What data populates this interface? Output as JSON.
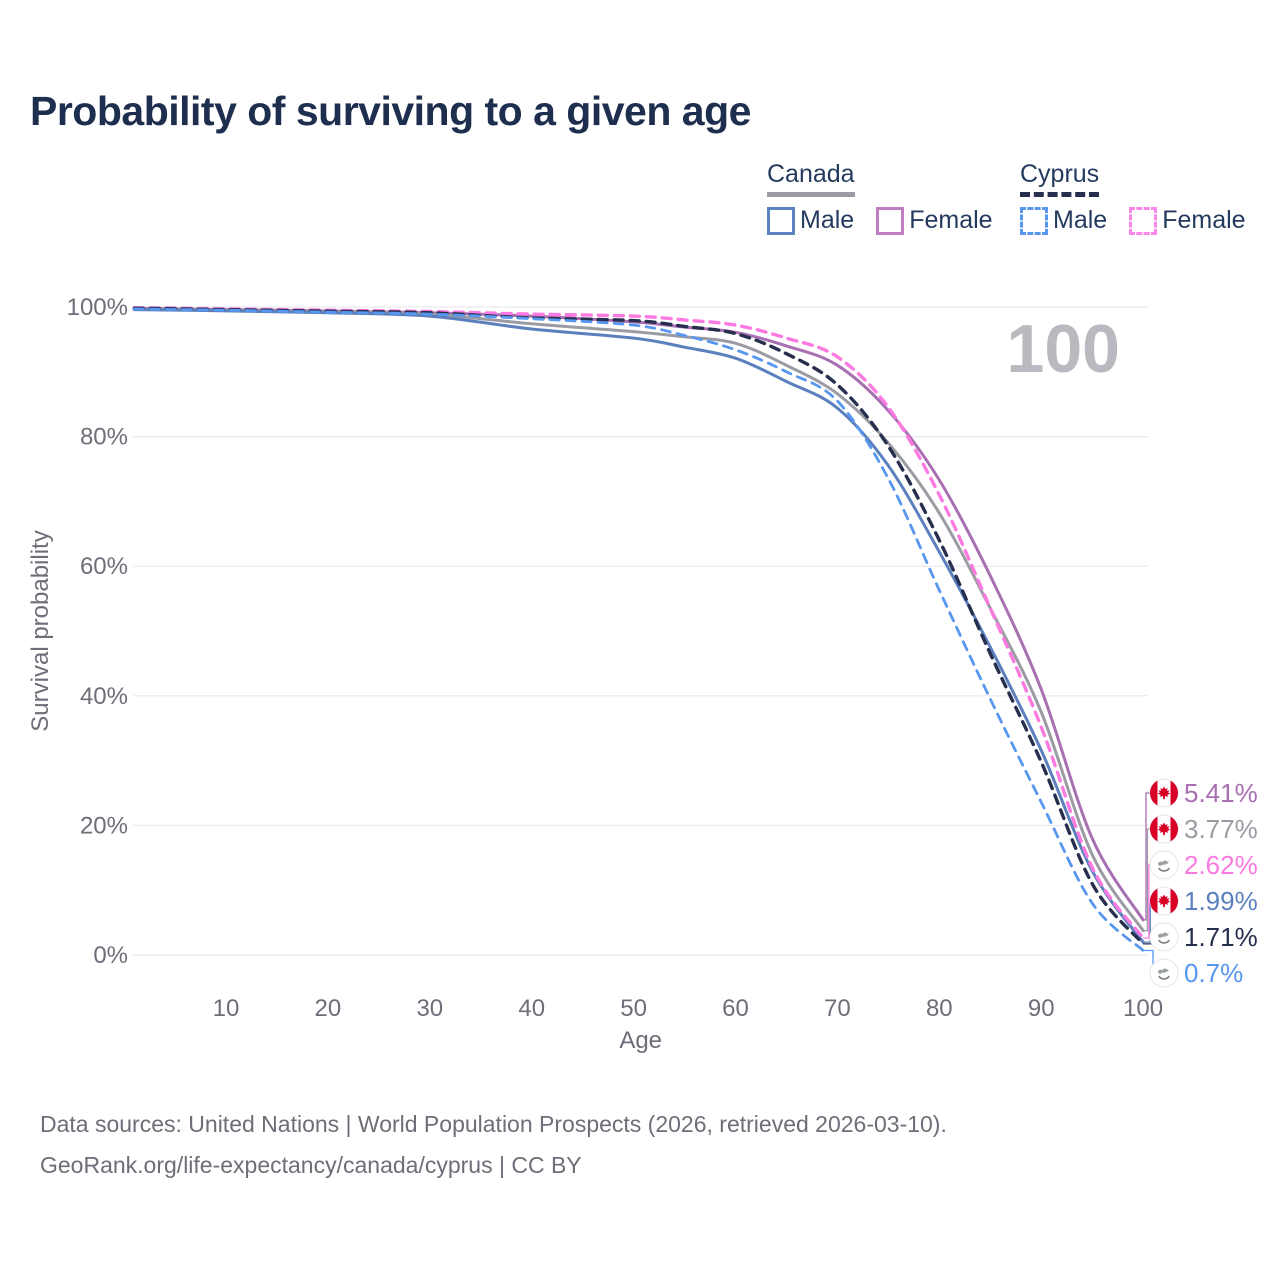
{
  "title": "Probability of surviving to a given age",
  "watermark_age": "100",
  "legend": {
    "groups": [
      {
        "name": "Canada",
        "underline": "solid",
        "underline_color": "#9b9ba3",
        "items": [
          {
            "label": "Male",
            "color": "#5b83c0",
            "dashed": false
          },
          {
            "label": "Female",
            "color": "#c07ec2",
            "dashed": false
          }
        ]
      },
      {
        "name": "Cyprus",
        "underline": "dashed",
        "underline_color": "#262f4d",
        "items": [
          {
            "label": "Male",
            "color": "#5797ef",
            "dashed": true
          },
          {
            "label": "Female",
            "color": "#fb85e8",
            "dashed": true
          }
        ]
      }
    ]
  },
  "chart_data": {
    "type": "line",
    "title": "Probability of surviving to a given age",
    "xlabel": "Age",
    "ylabel": "Survival probability",
    "xlim": [
      1,
      100
    ],
    "ylim": [
      0,
      100
    ],
    "grid": "horizontal-only",
    "legend_position": "top-right",
    "x_ticks": [
      10,
      20,
      30,
      40,
      50,
      60,
      70,
      80,
      90,
      100
    ],
    "y_ticks": [
      {
        "value": 0,
        "label": "0%"
      },
      {
        "value": 20,
        "label": "20%"
      },
      {
        "value": 40,
        "label": "40%"
      },
      {
        "value": 60,
        "label": "60%"
      },
      {
        "value": 80,
        "label": "80%"
      },
      {
        "value": 100,
        "label": "100%"
      }
    ],
    "ages": [
      1,
      10,
      20,
      30,
      40,
      50,
      55,
      60,
      65,
      70,
      75,
      80,
      85,
      90,
      95,
      100
    ],
    "series": [
      {
        "name": "Canada Female",
        "country": "Canada",
        "sex": "Female",
        "line": "solid",
        "color": "#a86fb2",
        "width": 3,
        "values": [
          99.8,
          99.6,
          99.4,
          99.1,
          98.6,
          97.7,
          96.9,
          96.1,
          94.0,
          91.0,
          84.0,
          73.3,
          58.5,
          41.0,
          18.0,
          5.41
        ],
        "end_label": "5.41%",
        "flag": "canada"
      },
      {
        "name": "Canada Both sexes",
        "country": "Canada",
        "sex": "Both",
        "line": "solid",
        "color": "#9b9ba3",
        "width": 3,
        "values": [
          99.7,
          99.5,
          99.3,
          98.9,
          97.4,
          96.2,
          95.4,
          94.4,
          91.0,
          86.6,
          79.0,
          68.2,
          53.5,
          37.5,
          15.5,
          3.77
        ],
        "end_label": "3.77%",
        "flag": "canada"
      },
      {
        "name": "Cyprus Female",
        "country": "Cyprus",
        "sex": "Female",
        "line": "dashed",
        "color": "#fb7ae1",
        "width": 3.4,
        "values": [
          99.9,
          99.7,
          99.5,
          99.3,
          98.9,
          98.6,
          98.0,
          97.2,
          95.2,
          92.3,
          84.5,
          71.0,
          53.5,
          35.2,
          13.5,
          2.62
        ],
        "end_label": "2.62%",
        "flag": "cyprus"
      },
      {
        "name": "Canada Male",
        "country": "Canada",
        "sex": "Male",
        "line": "solid",
        "color": "#5b80bd",
        "width": 3,
        "values": [
          99.6,
          99.4,
          99.1,
          98.6,
          96.6,
          95.2,
          93.8,
          92.1,
          88.5,
          84.4,
          75.5,
          62.2,
          47.5,
          31.6,
          13.0,
          1.99
        ],
        "end_label": "1.99%",
        "flag": "canada"
      },
      {
        "name": "Cyprus Both sexes",
        "country": "Cyprus",
        "sex": "Both",
        "line": "dashed",
        "color": "#262f4d",
        "width": 3.4,
        "values": [
          99.8,
          99.6,
          99.35,
          99.1,
          98.3,
          97.9,
          97.0,
          95.9,
          92.8,
          88.0,
          78.5,
          64.0,
          46.5,
          29.8,
          11.0,
          1.71
        ],
        "end_label": "1.71%",
        "flag": "cyprus"
      },
      {
        "name": "Cyprus Male",
        "country": "Cyprus",
        "sex": "Male",
        "line": "dashed",
        "color": "#5797ef",
        "width": 2.8,
        "values": [
          99.7,
          99.5,
          99.2,
          98.9,
          98.2,
          97.2,
          95.6,
          93.4,
          90.0,
          85.5,
          73.5,
          56.3,
          39.5,
          23.6,
          8.0,
          0.7
        ],
        "end_label": "0.7%",
        "flag": "cyprus"
      }
    ]
  },
  "colors": {
    "title_text": "#1d2e4e",
    "axis_text": "#6d6e78",
    "gridline": "#e9e9ee",
    "watermark": "#b9b9c0",
    "canada_flag_red": "#d80027",
    "cyprus_flag_copper": "#9aa0a2"
  },
  "footer": {
    "line1": "Data sources: United Nations | World Population Prospects (2026, retrieved 2026-03-10).",
    "line2": "GeoRank.org/life-expectancy/canada/cyprus | CC BY"
  }
}
